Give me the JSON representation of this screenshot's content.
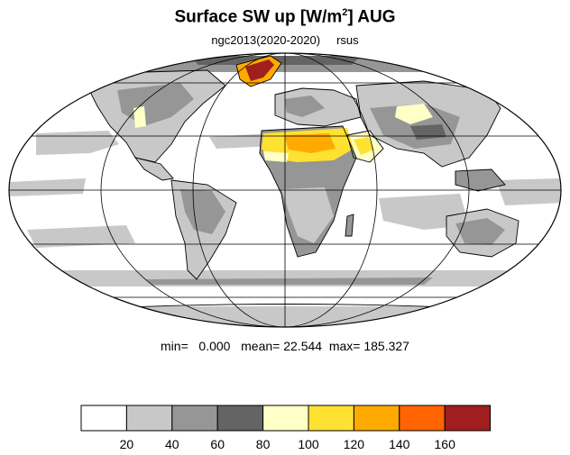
{
  "title": {
    "main": "Surface SW up [W/m",
    "sup": "2",
    "suffix": "]  AUG"
  },
  "subtitle": "ngc2013(2020-2020)     rsus",
  "stats": {
    "min_label": "min=",
    "min": "0.000",
    "mean_label": "mean=",
    "mean": "22.544",
    "max_label": "max=",
    "max": "185.327"
  },
  "colorbar": {
    "levels": [
      "20",
      "40",
      "60",
      "80",
      "100",
      "120",
      "140",
      "160"
    ],
    "colors": [
      "#ffffff",
      "#c8c8c8",
      "#969696",
      "#646464",
      "#ffffc8",
      "#ffe132",
      "#ffaa00",
      "#ff6400",
      "#a01e1e",
      "#a01e1e"
    ]
  },
  "map": {
    "projection": "mollweide",
    "graticule_lon_step_deg": 60,
    "graticule_lat_step_deg": 30
  }
}
